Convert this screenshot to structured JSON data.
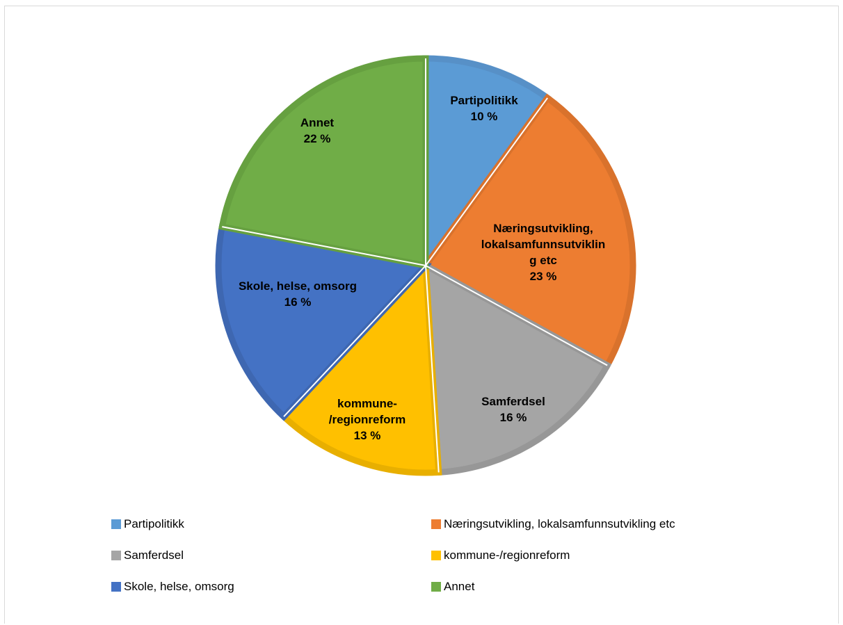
{
  "chart_data": {
    "type": "pie",
    "categories": [
      "Partipolitikk",
      "Næringsutvikling, lokalsamfunnsutvikling etc",
      "Samferdsel",
      "kommune-/regionreform",
      "Skole, helse, omsorg",
      "Annet"
    ],
    "values": [
      10,
      23,
      16,
      13,
      16,
      22
    ],
    "value_labels": [
      "10 %",
      "23 %",
      "16 %",
      "13 %",
      "16 %",
      "22 %"
    ],
    "slice_label_lines": [
      [
        "Partipolitikk"
      ],
      [
        "Næringsutvikling,",
        "lokalsamfunnsutviklin",
        "g etc"
      ],
      [
        "Samferdsel"
      ],
      [
        "kommune-",
        "/regionreform"
      ],
      [
        "Skole, helse, omsorg"
      ],
      [
        "Annet"
      ]
    ],
    "colors": [
      "#5B9BD5",
      "#ED7D31",
      "#A5A5A5",
      "#FFC000",
      "#4472C4",
      "#70AD47"
    ],
    "border_colors": [
      "#5790C7",
      "#D9722C",
      "#979797",
      "#E8AF00",
      "#3E67B1",
      "#66A040"
    ],
    "legend_position": "bottom",
    "title": ""
  }
}
